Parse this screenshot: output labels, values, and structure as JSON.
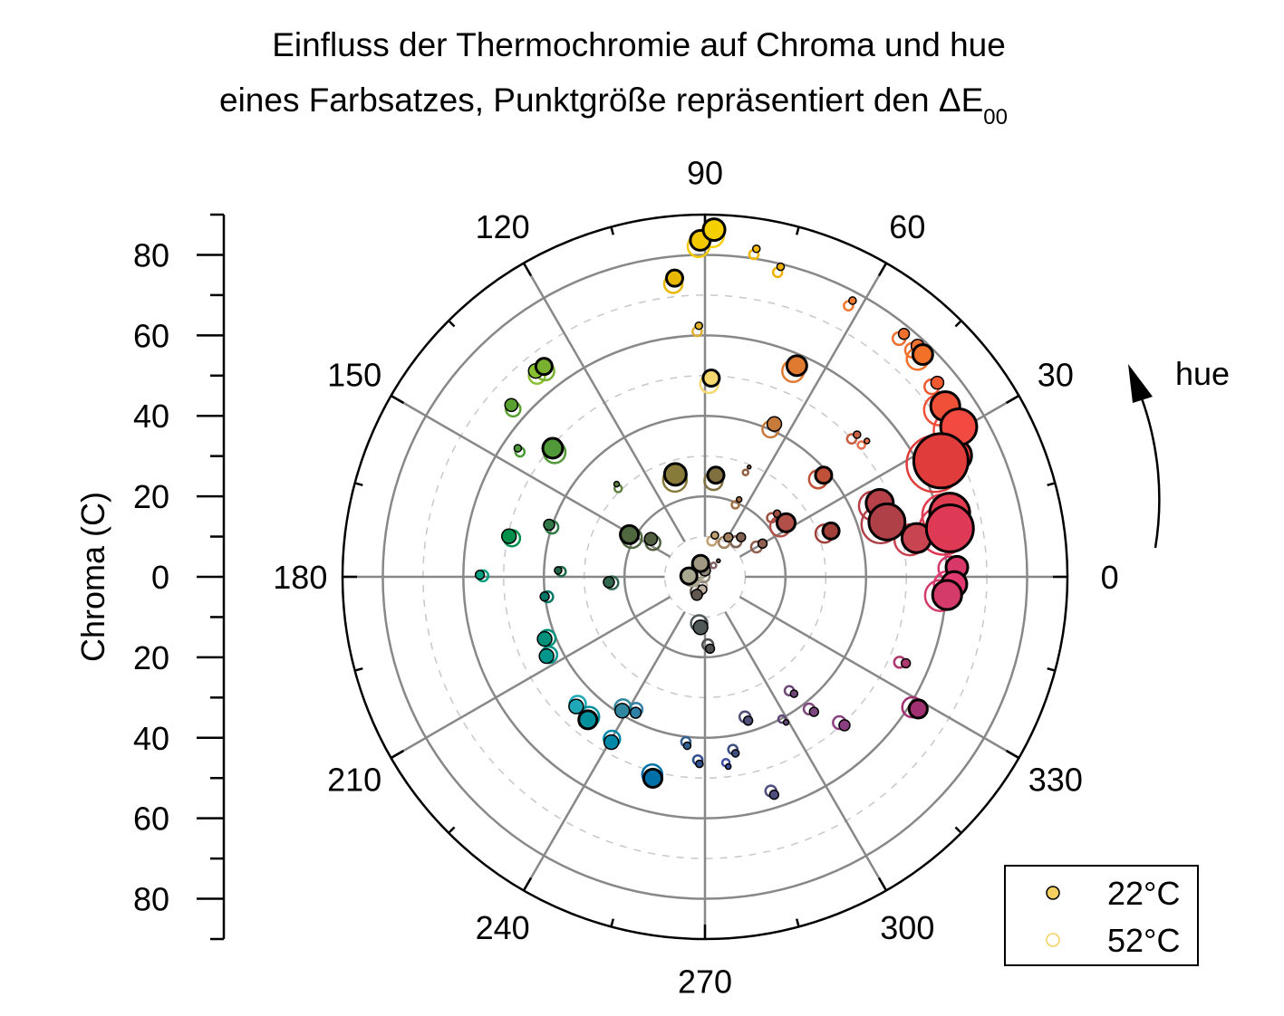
{
  "chart_data": {
    "type": "scatter",
    "coordinate_system": "polar",
    "title_line1": "Einfluss der Thermochromie auf Chroma und hue",
    "title_line2": "eines Farbsatzes, Punktgröße repräsentiert den ",
    "title_delta": "ΔE",
    "title_sub": "00",
    "radial_label": "Chroma (C)",
    "angular_label": "hue",
    "rlim": [
      0,
      90
    ],
    "radial_ticks": [
      "80",
      "60",
      "40",
      "20",
      "0",
      "20",
      "40",
      "60",
      "80"
    ],
    "angle_ticks": [
      "0",
      "30",
      "60",
      "90",
      "120",
      "150",
      "180",
      "210",
      "240",
      "270",
      "300",
      "330"
    ],
    "grid": true,
    "legend": {
      "placement": "bottom-right",
      "entries": [
        {
          "label": "22°C",
          "style": "filled",
          "color": "#f5d060"
        },
        {
          "label": "52°C",
          "style": "open",
          "color": "#f5d060"
        }
      ]
    },
    "points_columns": [
      "hue",
      "chroma",
      "dE00",
      "color"
    ],
    "points": [
      [
        88.5,
        86.3,
        8,
        "#f5d000"
      ],
      [
        90.8,
        83.6,
        7.3,
        "#f2c800"
      ],
      [
        81.1,
        82.5,
        2.7,
        "#f0b800"
      ],
      [
        76.3,
        79.3,
        2.7,
        "#f0b000"
      ],
      [
        95.8,
        74.6,
        6,
        "#e8b800"
      ],
      [
        91.4,
        62.4,
        2.7,
        "#e0b030"
      ],
      [
        88.2,
        49.4,
        6,
        "#f5d870"
      ],
      [
        61.9,
        77.8,
        2.7,
        "#f07830"
      ],
      [
        50.7,
        78.0,
        4,
        "#f07030"
      ],
      [
        47.4,
        78.0,
        4.7,
        "#f07030"
      ],
      [
        45.6,
        77.3,
        7.3,
        "#f27028"
      ],
      [
        66.5,
        57.2,
        7.3,
        "#e07a30"
      ],
      [
        39.9,
        75.2,
        4.7,
        "#f05830"
      ],
      [
        65.6,
        41.7,
        5.3,
        "#c87a3a"
      ],
      [
        43.1,
        51.7,
        2.7,
        "#c86040"
      ],
      [
        40.0,
        52.5,
        2,
        "#e87050"
      ],
      [
        35.4,
        73.2,
        10.7,
        "#f05038"
      ],
      [
        30.6,
        73.2,
        13.3,
        "#f24a40"
      ],
      [
        26.2,
        65.3,
        20,
        "#e03c3c"
      ],
      [
        25.8,
        69.3,
        11.3,
        "#e64040"
      ],
      [
        40.6,
        38.8,
        6,
        "#c05038"
      ],
      [
        22.9,
        47.1,
        10,
        "#b84048"
      ],
      [
        16.8,
        47.2,
        13.3,
        "#b04048"
      ],
      [
        10.4,
        53.4,
        10.7,
        "#c84450"
      ],
      [
        14.6,
        62.8,
        14.7,
        "#e03c50"
      ],
      [
        11.2,
        62.0,
        17.3,
        "#de3a55"
      ],
      [
        2.2,
        62.6,
        8,
        "#d83868"
      ],
      [
        358.3,
        61.9,
        9.3,
        "#e03a70"
      ],
      [
        355.7,
        60.3,
        10.7,
        "#d43a6a"
      ],
      [
        20.0,
        33.3,
        6,
        "#a04038"
      ],
      [
        33.7,
        24.2,
        6.7,
        "#b05048"
      ],
      [
        41.2,
        23.8,
        2.7,
        "#a05040"
      ],
      [
        30.0,
        16.5,
        3.3,
        "#906050"
      ],
      [
        47.7,
        13.3,
        3.3,
        "#806050"
      ],
      [
        59.4,
        11.4,
        3.3,
        "#a08060"
      ],
      [
        76.6,
        10.6,
        2.7,
        "#c0a070"
      ],
      [
        66.2,
        21.0,
        2,
        "#a07040"
      ],
      [
        68.1,
        29.4,
        1.3,
        "#906040"
      ],
      [
        83.9,
        25.4,
        6,
        "#807040"
      ],
      [
        336.7,
        54.3,
        3.3,
        "#b03870"
      ],
      [
        328.2,
        62.3,
        6.7,
        "#a03070"
      ],
      [
        313.2,
        50.6,
        4,
        "#8a4080"
      ],
      [
        308.9,
        43.1,
        3.3,
        "#804880"
      ],
      [
        307.3,
        36.5,
        2.7,
        "#704878"
      ],
      [
        299.1,
        41.4,
        2,
        "#604878"
      ],
      [
        286.7,
        37.3,
        3.3,
        "#50507a"
      ],
      [
        287.6,
        56.8,
        3.3,
        "#505080"
      ],
      [
        279.8,
        44.5,
        2.7,
        "#405080"
      ],
      [
        277.0,
        47.5,
        2,
        "#4050a0"
      ],
      [
        268.3,
        46.5,
        2.7,
        "#305090"
      ],
      [
        264.0,
        42.2,
        2.7,
        "#306090"
      ],
      [
        255.5,
        51.7,
        6.7,
        "#0070a8"
      ],
      [
        240.5,
        47.2,
        5.3,
        "#0088a8"
      ],
      [
        230.7,
        45.9,
        6.7,
        "#00909c"
      ],
      [
        225.2,
        45.4,
        5.3,
        "#20a8b8"
      ],
      [
        238.3,
        39.1,
        5.3,
        "#3088a0"
      ],
      [
        243.0,
        37.9,
        4,
        "#3080a8"
      ],
      [
        206.6,
        44.0,
        5.3,
        "#00968c"
      ],
      [
        201.2,
        42.7,
        5.3,
        "#00907c"
      ],
      [
        187.0,
        40.1,
        3.3,
        "#007868"
      ],
      [
        179.5,
        55.9,
        3.3,
        "#00a080"
      ],
      [
        183.2,
        23.9,
        4,
        "#306850"
      ],
      [
        177.5,
        36.5,
        2.7,
        "#206848"
      ],
      [
        168.3,
        49.7,
        5.3,
        "#00904c"
      ],
      [
        161.5,
        40.8,
        4,
        "#307848"
      ],
      [
        145.5,
        56.4,
        2.7,
        "#4a9838"
      ],
      [
        138.4,
        64.3,
        4.7,
        "#5aa030"
      ],
      [
        139.8,
        49.5,
        7.3,
        "#509838"
      ],
      [
        133.6,
        31.8,
        2,
        "#608040"
      ],
      [
        127.4,
        65.8,
        6,
        "#7ab030"
      ],
      [
        129.4,
        66.2,
        5.3,
        "#88c030"
      ],
      [
        150.8,
        21.5,
        6.7,
        "#506840"
      ],
      [
        145.0,
        16.4,
        4.7,
        "#506040"
      ],
      [
        106.1,
        26.5,
        8,
        "#887a38"
      ],
      [
        108,
        3.5,
        6,
        "#a09880"
      ],
      [
        177,
        4.0,
        6,
        "#a8a890"
      ],
      [
        90,
        1.6,
        4,
        "#908878"
      ],
      [
        245.8,
        4.9,
        4,
        "#605850"
      ],
      [
        258,
        3.2,
        3.3,
        "#c0b0a0"
      ],
      [
        50,
        5.2,
        1.3,
        "#806060"
      ],
      [
        265,
        12.6,
        5.3,
        "#505858"
      ],
      [
        274,
        17.9,
        3.3,
        "#505050"
      ]
    ]
  }
}
